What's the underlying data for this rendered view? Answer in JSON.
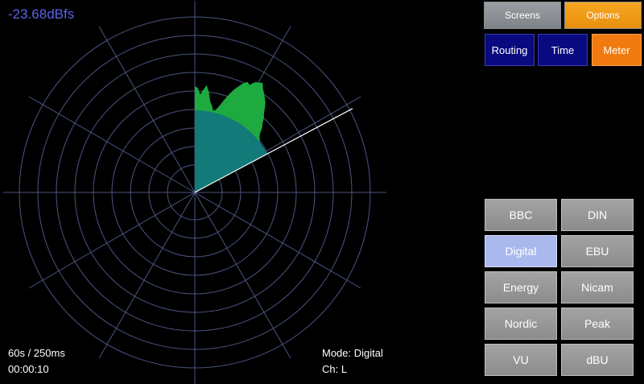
{
  "meter": {
    "level_readout": "-23.68dBfs",
    "timebase": "60s / 250ms",
    "elapsed": "00:00:10",
    "mode": "Mode: Digital",
    "channel": "Ch: L"
  },
  "top_tabs": {
    "screens": "Screens",
    "options": "Options"
  },
  "nav": {
    "routing": "Routing",
    "time": "Time",
    "meter": "Meter",
    "active": "Meter"
  },
  "modes": {
    "selected": "Digital",
    "items": [
      "BBC",
      "DIN",
      "Digital",
      "EBU",
      "Energy",
      "Nicam",
      "Nordic",
      "Peak",
      "VU",
      "dBU"
    ]
  },
  "colors": {
    "grid": "#4a5580",
    "history": "#1faa3f",
    "level": "#127a78",
    "sweep": "#ffffff",
    "readout": "#5a63e6"
  }
}
